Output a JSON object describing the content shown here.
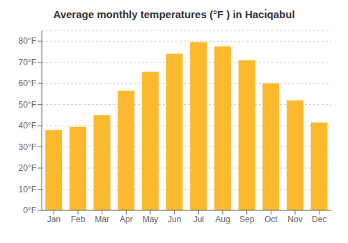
{
  "chart_data": {
    "type": "bar",
    "title": "Average monthly temperatures (°F ) in Hacı̇qabul",
    "categories": [
      "Jan",
      "Feb",
      "Mar",
      "Apr",
      "May",
      "Jun",
      "Jul",
      "Aug",
      "Sep",
      "Oct",
      "Nov",
      "Dec"
    ],
    "values": [
      38,
      39.5,
      45,
      56.5,
      65.5,
      74,
      79.5,
      77.5,
      71,
      60,
      52,
      41.5
    ],
    "color": "#FDB92E",
    "ylim": [
      0,
      85
    ],
    "yticks": [
      {
        "value": 0,
        "label": "0°F"
      },
      {
        "value": 10,
        "label": "10°F"
      },
      {
        "value": 20,
        "label": "20°F"
      },
      {
        "value": 30,
        "label": "30°F"
      },
      {
        "value": 40,
        "label": "40°F"
      },
      {
        "value": 50,
        "label": "50°F"
      },
      {
        "value": 60,
        "label": "60°F"
      },
      {
        "value": 70,
        "label": "70°F"
      },
      {
        "value": 80,
        "label": "80°F"
      }
    ],
    "grid": true
  }
}
